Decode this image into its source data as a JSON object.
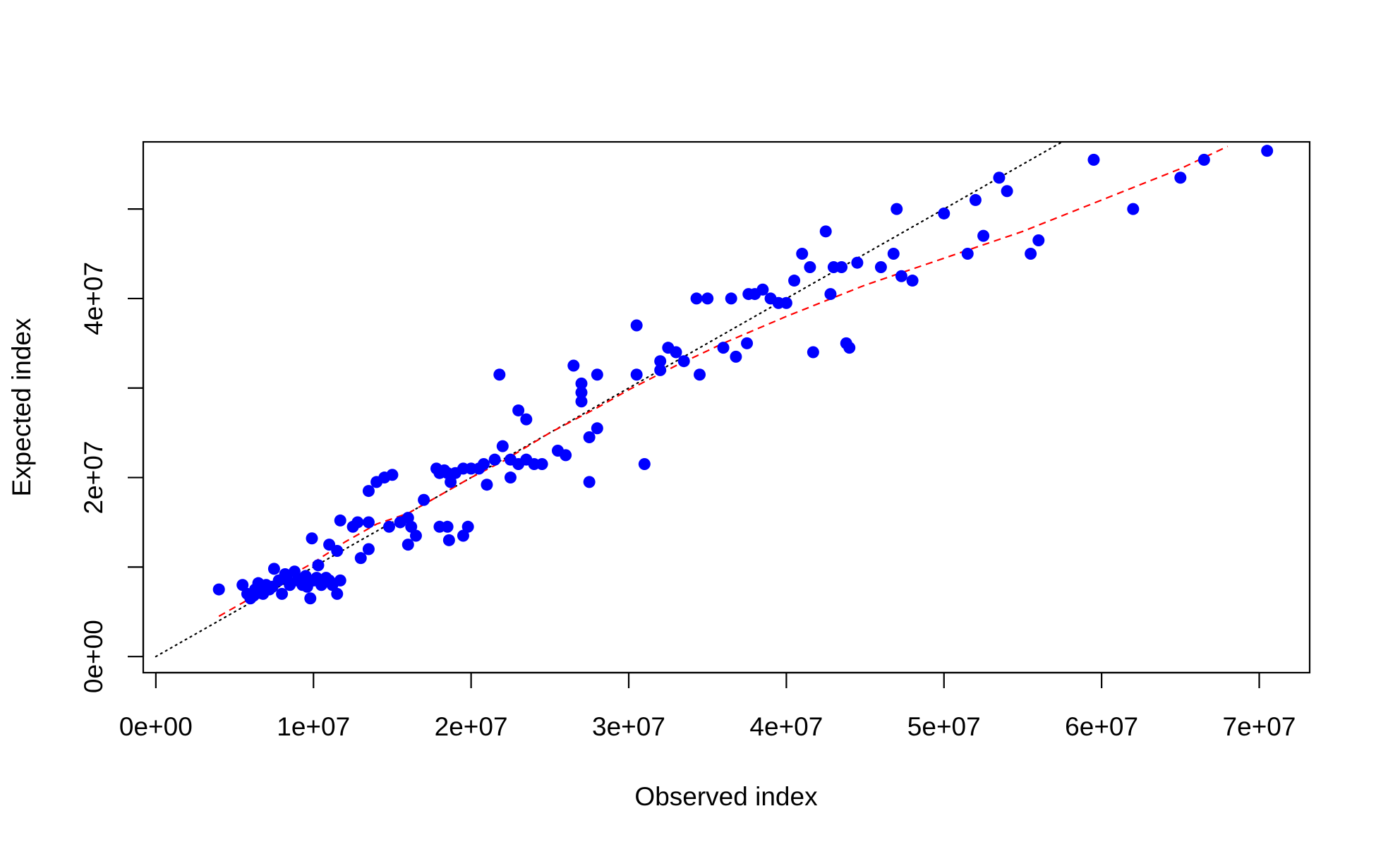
{
  "chart_data": {
    "type": "scatter",
    "title": "",
    "xlabel": "Observed index",
    "ylabel": "Expected index",
    "xlim": [
      -800000,
      73200000
    ],
    "ylim": [
      -1800000,
      57500000
    ],
    "x_ticks": [
      {
        "value": 0,
        "label": "0e+00"
      },
      {
        "value": 10000000,
        "label": "1e+07"
      },
      {
        "value": 20000000,
        "label": "2e+07"
      },
      {
        "value": 30000000,
        "label": "3e+07"
      },
      {
        "value": 40000000,
        "label": "4e+07"
      },
      {
        "value": 50000000,
        "label": "5e+07"
      },
      {
        "value": 60000000,
        "label": "6e+07"
      },
      {
        "value": 70000000,
        "label": "7e+07"
      }
    ],
    "y_ticks": [
      {
        "value": 0,
        "label": "0e+00"
      },
      {
        "value": 10000000,
        "label": ""
      },
      {
        "value": 20000000,
        "label": "2e+07"
      },
      {
        "value": 30000000,
        "label": ""
      },
      {
        "value": 40000000,
        "label": "4e+07"
      },
      {
        "value": 50000000,
        "label": ""
      }
    ],
    "grid": false,
    "colors": {
      "points": "#0000ff",
      "identity_line": "#000000",
      "fit_line": "#ff0000"
    },
    "series": [
      {
        "type": "scatter",
        "x": [
          4000000.0,
          5500000.0,
          5800000.0,
          6000000.0,
          6300000.0,
          6500000.0,
          6800000.0,
          7000000.0,
          7200000.0,
          7500000.0,
          7800000.0,
          8000000.0,
          8200000.0,
          8500000.0,
          8800000.0,
          9000000.0,
          9300000.0,
          9500000.0,
          9800000.0,
          10000000.0,
          10300000.0,
          10500000.0,
          10800000.0,
          11000000.0,
          11200000.0,
          11500000.0,
          11700000.0,
          6200000.0,
          7400000.0,
          8300000.0,
          9600000.0,
          10200000.0,
          11000000.0,
          11500000.0,
          11700000.0,
          9900000.0,
          12500000.0,
          13000000.0,
          13500000.0,
          13500000.0,
          14000000.0,
          14500000.0,
          15000000.0,
          15500000.0,
          16000000.0,
          16200000.0,
          16500000.0,
          12800000.0,
          13500000.0,
          14800000.0,
          16000000.0,
          17000000.0,
          17800000.0,
          18000000.0,
          18300000.0,
          18500000.0,
          18700000.0,
          19000000.0,
          19500000.0,
          20000000.0,
          20500000.0,
          21000000.0,
          21500000.0,
          22000000.0,
          22500000.0,
          23000000.0,
          23500000.0,
          24000000.0,
          24500000.0,
          25500000.0,
          26000000.0,
          26500000.0,
          27000000.0,
          27000000.0,
          27000000.0,
          27500000.0,
          27500000.0,
          28000000.0,
          28000000.0,
          21800000.0,
          23000000.0,
          23500000.0,
          18500000.0,
          19500000.0,
          19800000.0,
          20800000.0,
          22500000.0,
          18000000.0,
          18600000.0,
          30500000.0,
          31000000.0,
          30500000.0,
          32000000.0,
          32500000.0,
          33000000.0,
          33500000.0,
          34500000.0,
          35000000.0,
          36000000.0,
          36500000.0,
          36800000.0,
          37500000.0,
          38000000.0,
          38500000.0,
          39000000.0,
          39500000.0,
          40000000.0,
          40500000.0,
          41000000.0,
          41500000.0,
          41700000.0,
          42500000.0,
          43000000.0,
          43500000.0,
          43800000.0,
          44000000.0,
          42800000.0,
          44500000.0,
          46000000.0,
          46800000.0,
          47000000.0,
          47300000.0,
          48000000.0,
          50000000.0,
          51500000.0,
          52000000.0,
          52500000.0,
          53500000.0,
          54000000.0,
          55500000.0,
          56000000.0,
          59500000.0,
          62000000.0,
          65000000.0,
          66500000.0,
          70500000.0,
          32000000.0,
          34300000.0,
          37600000.0
        ],
        "y": [
          7500000.0,
          8000000.0,
          7000000.0,
          6500000.0,
          7500000.0,
          8200000.0,
          7000000.0,
          8000000.0,
          7500000.0,
          9800000.0,
          8500000.0,
          7000000.0,
          9200000.0,
          8000000.0,
          9500000.0,
          8500000.0,
          8000000.0,
          9000000.0,
          6500000.0,
          8500000.0,
          10200000.0,
          8000000.0,
          8800000.0,
          8500000.0,
          8000000.0,
          7000000.0,
          8500000.0,
          6800000.0,
          7800000.0,
          8800000.0,
          7800000.0,
          8800000.0,
          12500000.0,
          11800000.0,
          15200000.0,
          13200000.0,
          14500000.0,
          11000000.0,
          12000000.0,
          18500000.0,
          19500000.0,
          20000000.0,
          20300000.0,
          15000000.0,
          15500000.0,
          14500000.0,
          13500000.0,
          15000000.0,
          15000000.0,
          14500000.0,
          12500000.0,
          17500000.0,
          21000000.0,
          20500000.0,
          20800000.0,
          20500000.0,
          19500000.0,
          20500000.0,
          21000000.0,
          21000000.0,
          21000000.0,
          19200000.0,
          22000000.0,
          23500000.0,
          22000000.0,
          21500000.0,
          22000000.0,
          21500000.0,
          21500000.0,
          23000000.0,
          22500000.0,
          32500000.0,
          30500000.0,
          29500000.0,
          28500000.0,
          19500000.0,
          24500000.0,
          31500000.0,
          25500000.0,
          31500000.0,
          27500000.0,
          26500000.0,
          14500000.0,
          13500000.0,
          14500000.0,
          21500000.0,
          20000000.0,
          14500000.0,
          13000000.0,
          37000000.0,
          21500000.0,
          31500000.0,
          32000000.0,
          34500000.0,
          34000000.0,
          33000000.0,
          31500000.0,
          40000000.0,
          34500000.0,
          40000000.0,
          33500000.0,
          35000000.0,
          40500000.0,
          41000000.0,
          40000000.0,
          39500000.0,
          39500000.0,
          42000000.0,
          45000000.0,
          43500000.0,
          34000000.0,
          47500000.0,
          43500000.0,
          43500000.0,
          35000000.0,
          34500000.0,
          40500000.0,
          44000000.0,
          43500000.0,
          45000000.0,
          50000000.0,
          42500000.0,
          42000000.0,
          49500000.0,
          45000000.0,
          51000000.0,
          47000000.0,
          53500000.0,
          52000000.0,
          45000000.0,
          46500000.0,
          55500000.0,
          50000000.0,
          53500000.0,
          55500000.0,
          56500000.0,
          33000000.0,
          40000000.0,
          40500000.0
        ]
      },
      {
        "type": "line",
        "style": "dotted",
        "x": [
          0,
          59500000
        ],
        "y": [
          0,
          59500000
        ]
      },
      {
        "type": "line",
        "style": "dashed",
        "x": [
          4000000.0,
          6000000.0,
          8000000.0,
          10000000.0,
          12000000.0,
          14000000.0,
          16000000.0,
          18000000.0,
          20000000.0,
          22000000.0,
          25000000.0,
          28000000.0,
          30000000.0,
          33000000.0,
          36000000.0,
          40000000.0,
          45000000.0,
          50000000.0,
          55000000.0,
          60000000.0,
          65000000.0,
          68000000.0
        ],
        "y": [
          4500000.0,
          6500000.0,
          8500000.0,
          10500000.0,
          12800000.0,
          14800000.0,
          16000000.0,
          18000000.0,
          20000000.0,
          21800000.0,
          25000000.0,
          27800000.0,
          29800000.0,
          32500000.0,
          35000000.0,
          38000000.0,
          41500000.0,
          44500000.0,
          47500000.0,
          51000000.0,
          54500000.0,
          57000000.0
        ]
      }
    ]
  }
}
